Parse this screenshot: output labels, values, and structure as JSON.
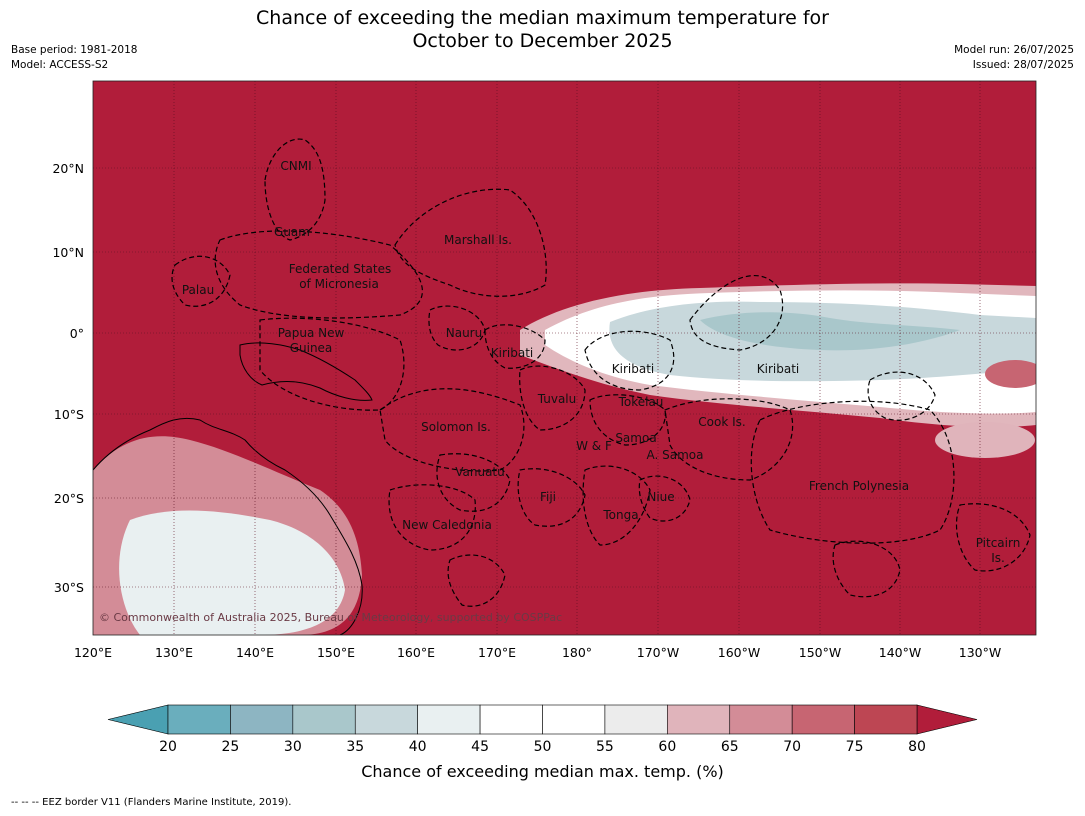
{
  "title_line1": "Chance of exceeding the median maximum temperature for",
  "title_line2": "October to December 2025",
  "base_period": "Base period: 1981-2018",
  "model": "Model: ACCESS-S2",
  "model_run": "Model run: 26/07/2025",
  "issued": "Issued: 28/07/2025",
  "copyright": "© Commonwealth of Australia 2025, Bureau of Meteorology, supported by COSPPac",
  "lon_ticks": [
    "120°E",
    "130°E",
    "140°E",
    "150°E",
    "160°E",
    "170°E",
    "180°",
    "170°W",
    "160°W",
    "150°W",
    "140°W",
    "130°W"
  ],
  "lat_ticks": [
    "20°N",
    "10°N",
    "0°",
    "10°S",
    "20°S",
    "30°S"
  ],
  "places": [
    {
      "name": "CNMI"
    },
    {
      "name": "Guam"
    },
    {
      "name": "Marshall Is."
    },
    {
      "name": "Federated States"
    },
    {
      "name": "of Micronesia"
    },
    {
      "name": "Palau"
    },
    {
      "name": "Papua New"
    },
    {
      "name": "Guinea"
    },
    {
      "name": "Nauru"
    },
    {
      "name": "Kiribati"
    },
    {
      "name": "Kiribati"
    },
    {
      "name": "Kiribati"
    },
    {
      "name": "Tuvalu"
    },
    {
      "name": "Tokelau"
    },
    {
      "name": "Cook Is."
    },
    {
      "name": "Solomon Is."
    },
    {
      "name": "W & F"
    },
    {
      "name": "Samoa"
    },
    {
      "name": "A. Samoa"
    },
    {
      "name": "Vanuatu"
    },
    {
      "name": "Fiji"
    },
    {
      "name": "Niue"
    },
    {
      "name": "Tonga"
    },
    {
      "name": "French Polynesia"
    },
    {
      "name": "New Caledonia"
    },
    {
      "name": "Pitcairn"
    },
    {
      "name": "Is."
    }
  ],
  "colorbar": {
    "ticks": [
      "20",
      "25",
      "30",
      "35",
      "40",
      "45",
      "50",
      "55",
      "60",
      "65",
      "70",
      "75",
      "80"
    ],
    "colors": [
      "#6aaebd",
      "#8db5c2",
      "#a9c7cb",
      "#c8d8dc",
      "#e9f0f1",
      "#ffffff",
      "#ffffff",
      "#ececec",
      "#e0b4bb",
      "#d38c97",
      "#c76572",
      "#bd4653"
    ],
    "under_color": "#4aa0b2",
    "over_color": "#b11d3a",
    "label": "Chance of exceeding median max. temp. (%)"
  },
  "footnote": "--  --  -- EEZ border V11 (Flanders Marine Institute, 2019)."
}
